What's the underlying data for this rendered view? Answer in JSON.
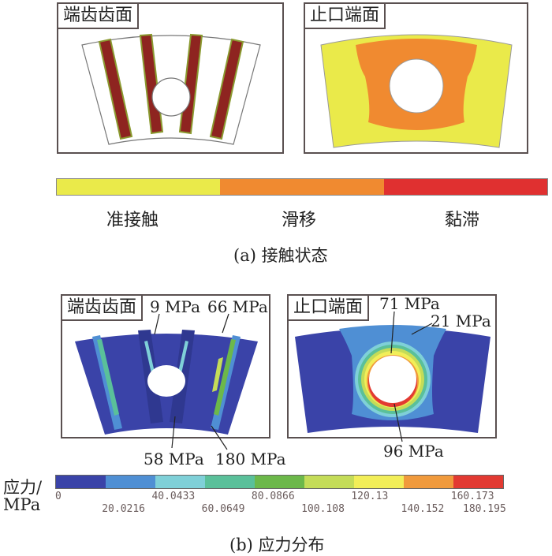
{
  "panel_a": {
    "left_title": "端齿齿面",
    "right_title": "止口端面",
    "legend": [
      {
        "label": "准接触",
        "color": "#eaea4a"
      },
      {
        "label": "滑移",
        "color": "#f08a30"
      },
      {
        "label": "黏滞",
        "color": "#e03030"
      }
    ],
    "caption": "(a) 接触状态"
  },
  "panel_b": {
    "left_title": "端齿齿面",
    "right_title": "止口端面",
    "annotations": {
      "left_top_1": "9 MPa",
      "left_top_2": "66 MPa",
      "left_bottom_1": "58 MPa",
      "left_bottom_2": "180 MPa",
      "right_top_1": "71 MPa",
      "right_top_2": "21 MPa",
      "right_bottom": "96 MPa"
    },
    "scale_label_1": "应力/",
    "scale_label_2": "MPa",
    "scale_colors": [
      "#3a43a8",
      "#4f8fd4",
      "#7fd0d8",
      "#5ac09a",
      "#6cb84a",
      "#c4dc58",
      "#f2ee58",
      "#f09a3c",
      "#e23a32"
    ],
    "scale_ticks": [
      "0",
      "20.0216",
      "40.0433",
      "60.0649",
      "80.0866",
      "100.108",
      "120.13",
      "140.152",
      "160.173",
      "180.195"
    ],
    "caption": "(b) 应力分布"
  }
}
